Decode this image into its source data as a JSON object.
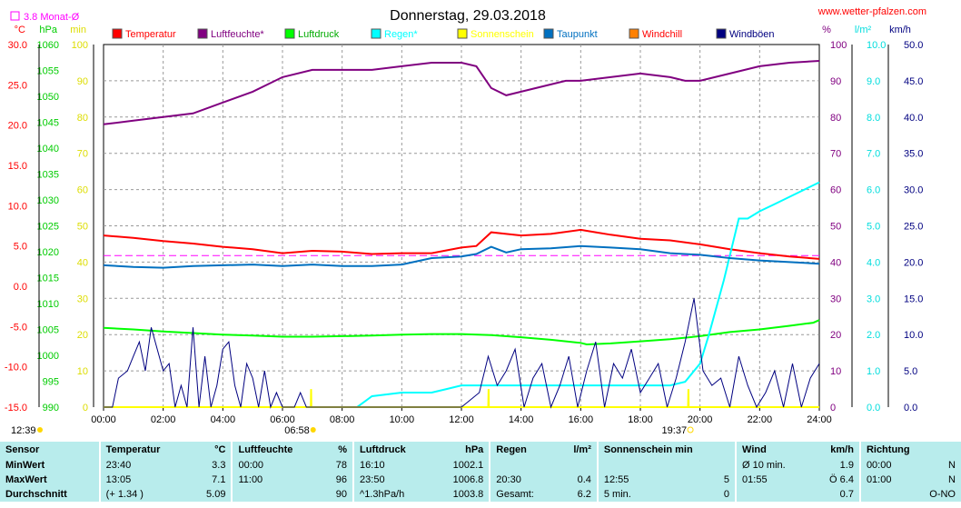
{
  "site": "www.wetter-pfalzen.com",
  "chart_data": {
    "type": "line",
    "title": "Donnerstag, 29.03.2018",
    "month_avg_label": "3.8 Monat-Ø",
    "month_avg_temp": 3.8,
    "x_ticks": [
      "00:00",
      "02:00",
      "04:00",
      "06:00",
      "08:00",
      "10:00",
      "12:00",
      "14:00",
      "16:00",
      "18:00",
      "20:00",
      "22:00",
      "24:00"
    ],
    "xlim": [
      0,
      24
    ],
    "sunrise": "06:58",
    "sunset": "19:37",
    "moon_left": "12:39",
    "grid": true,
    "left_axes": [
      {
        "unit": "°C",
        "color": "#ff0000",
        "ylim": [
          -15,
          30
        ],
        "ticks": [
          "30.0",
          "25.0",
          "20.0",
          "15.0",
          "10.0",
          "5.0",
          "0.0",
          "-5.0",
          "-10.0",
          "-15.0"
        ]
      },
      {
        "unit": "hPa",
        "color": "#00cc00",
        "ylim": [
          990,
          1060
        ],
        "ticks": [
          "1060",
          "1055",
          "1050",
          "1045",
          "1040",
          "1035",
          "1030",
          "1025",
          "1020",
          "1015",
          "1010",
          "1005",
          "1000",
          "995",
          "990"
        ]
      },
      {
        "unit": "min",
        "color": "#dddd00",
        "ylim": [
          0,
          100
        ],
        "ticks": [
          "100",
          "90",
          "80",
          "70",
          "60",
          "50",
          "40",
          "30",
          "20",
          "10",
          "0"
        ]
      }
    ],
    "right_axes": [
      {
        "unit": "%",
        "color": "#800080",
        "ylim": [
          0,
          100
        ],
        "ticks": [
          "100",
          "90",
          "80",
          "70",
          "60",
          "50",
          "40",
          "30",
          "20",
          "10",
          "0"
        ]
      },
      {
        "unit": "l/m²",
        "color": "#00dddd",
        "ylim": [
          0,
          10
        ],
        "ticks": [
          "10.0",
          "9.0",
          "8.0",
          "7.0",
          "6.0",
          "5.0",
          "4.0",
          "3.0",
          "2.0",
          "1.0",
          "0.0"
        ]
      },
      {
        "unit": "km/h",
        "color": "#000080",
        "ylim": [
          0,
          50
        ],
        "ticks": [
          "50.0",
          "45.0",
          "40.0",
          "35.0",
          "30.0",
          "25.0",
          "20.0",
          "15.0",
          "10.0",
          "5.0",
          "0.0"
        ]
      }
    ],
    "legend": [
      {
        "name": "Temperatur",
        "color": "#ff0000"
      },
      {
        "name": "Luftfeuchte*",
        "color": "#800080"
      },
      {
        "name": "Luftdruck",
        "color": "#00ff00"
      },
      {
        "name": "Regen*",
        "color": "#00ffff"
      },
      {
        "name": "Sonnenschein",
        "color": "#ffff00"
      },
      {
        "name": "Taupunkt",
        "color": "#0070c0"
      },
      {
        "name": "Windchill",
        "color": "#ff8000"
      },
      {
        "name": "Windböen",
        "color": "#000080"
      }
    ],
    "series": [
      {
        "name": "Temperatur",
        "color": "#ff0000",
        "axis": "°C",
        "x": [
          0,
          1,
          2,
          3,
          4,
          5,
          6,
          7,
          8,
          9,
          10,
          11,
          12,
          12.5,
          13,
          13.5,
          14,
          15,
          16,
          16.5,
          17,
          18,
          19,
          20,
          21,
          22,
          23,
          24
        ],
        "values": [
          6.3,
          6.0,
          5.6,
          5.3,
          4.9,
          4.6,
          4.1,
          4.4,
          4.3,
          4.0,
          4.1,
          4.1,
          4.8,
          5.0,
          6.7,
          6.5,
          6.3,
          6.5,
          7.0,
          6.7,
          6.4,
          5.9,
          5.7,
          5.2,
          4.6,
          4.1,
          3.7,
          3.4
        ]
      },
      {
        "name": "Luftfeuchte*",
        "color": "#800080",
        "axis": "%",
        "x": [
          0,
          1,
          2,
          3,
          4,
          5,
          6,
          7,
          8,
          9,
          10,
          11,
          11.5,
          12,
          12.5,
          13,
          13.5,
          14,
          15,
          15.5,
          16,
          17,
          18,
          19,
          19.5,
          20,
          21,
          22,
          23,
          24
        ],
        "values": [
          78,
          79,
          80,
          81,
          84,
          87,
          91,
          93,
          93,
          93,
          94,
          95,
          95,
          95,
          94,
          88,
          86,
          87,
          89,
          90,
          90,
          91,
          92,
          91,
          90,
          90,
          92,
          94,
          95,
          95.5
        ]
      },
      {
        "name": "Luftdruck",
        "color": "#00ff00",
        "axis": "hPa",
        "x": [
          0,
          1,
          2,
          3,
          4,
          5,
          6,
          7,
          8,
          9,
          10,
          11,
          12,
          13,
          14,
          15,
          16,
          16.2,
          17,
          18,
          19,
          20,
          21,
          22,
          23,
          23.8,
          24
        ],
        "values": [
          1005.3,
          1005.0,
          1004.6,
          1004.3,
          1004.0,
          1003.8,
          1003.6,
          1003.6,
          1003.7,
          1003.8,
          1004.0,
          1004.1,
          1004.1,
          1003.9,
          1003.5,
          1003.0,
          1002.4,
          1002.1,
          1002.3,
          1002.7,
          1003.1,
          1003.7,
          1004.5,
          1005.0,
          1005.7,
          1006.3,
          1006.8
        ]
      },
      {
        "name": "Regen*",
        "color": "#00ffff",
        "axis": "l/m²",
        "x": [
          0,
          8.5,
          9,
          10,
          11,
          11.5,
          12,
          13,
          14,
          15,
          16,
          17,
          18,
          19,
          19.5,
          20,
          20.3,
          20.8,
          21.3,
          21.6,
          22,
          22.5,
          23,
          23.5,
          24
        ],
        "values": [
          0,
          0,
          0.3,
          0.4,
          0.4,
          0.5,
          0.6,
          0.6,
          0.6,
          0.6,
          0.6,
          0.6,
          0.6,
          0.6,
          0.7,
          1.2,
          2.0,
          3.5,
          5.2,
          5.2,
          5.4,
          5.6,
          5.8,
          6.0,
          6.2
        ]
      },
      {
        "name": "Sonnenschein",
        "color": "#ffff00",
        "axis": "min",
        "x": [
          0,
          6.95,
          6.96,
          6.97,
          12.9,
          12.91,
          12.92,
          19.6,
          19.61,
          19.62,
          24
        ],
        "values": [
          0,
          0,
          5,
          0,
          0,
          5,
          0,
          0,
          5,
          0,
          0
        ]
      },
      {
        "name": "Taupunkt",
        "color": "#0070c0",
        "axis": "°C",
        "x": [
          0,
          1,
          2,
          3,
          4,
          5,
          6,
          7,
          8,
          9,
          10,
          11,
          12,
          12.5,
          13,
          13.5,
          14,
          15,
          16,
          17,
          18,
          19,
          20,
          21,
          22,
          23,
          24
        ],
        "values": [
          2.6,
          2.4,
          2.3,
          2.5,
          2.6,
          2.7,
          2.5,
          2.7,
          2.5,
          2.5,
          2.7,
          3.5,
          3.7,
          4.0,
          4.9,
          4.2,
          4.6,
          4.7,
          5.0,
          4.8,
          4.6,
          4.1,
          3.9,
          3.5,
          3.2,
          3.0,
          2.8
        ]
      },
      {
        "name": "Windböen",
        "color": "#000080",
        "axis": "km/h",
        "x": [
          0,
          0.3,
          0.5,
          0.8,
          1.0,
          1.2,
          1.4,
          1.6,
          1.8,
          2.0,
          2.2,
          2.4,
          2.6,
          2.8,
          3.0,
          3.2,
          3.4,
          3.6,
          3.8,
          4.0,
          4.2,
          4.4,
          4.6,
          4.8,
          5.0,
          5.2,
          5.4,
          5.6,
          5.8,
          6.0,
          6.2,
          6.4,
          6.6,
          6.8,
          7.0,
          7.2,
          7.4,
          7.6,
          12.0,
          12.3,
          12.6,
          12.9,
          13.2,
          13.5,
          13.8,
          14.1,
          14.4,
          14.7,
          15.0,
          15.3,
          15.6,
          15.9,
          16.2,
          16.5,
          16.8,
          17.1,
          17.4,
          17.7,
          18.0,
          18.3,
          18.6,
          18.9,
          19.2,
          19.5,
          19.8,
          20.1,
          20.4,
          20.7,
          21.0,
          21.3,
          21.6,
          21.9,
          22.2,
          22.5,
          22.8,
          23.1,
          23.4,
          23.7,
          24.0
        ],
        "values": [
          0,
          0,
          4,
          5,
          7,
          9,
          5,
          11,
          8,
          5,
          6,
          0,
          3,
          0,
          11,
          0,
          7,
          0,
          3,
          8,
          9,
          3,
          0,
          6,
          4,
          0,
          5,
          0,
          2,
          0,
          0,
          0,
          2,
          0,
          0,
          0,
          0,
          0,
          0,
          1,
          2,
          7,
          3,
          5,
          8,
          0,
          4,
          6,
          0,
          3,
          7,
          0,
          5,
          9,
          0,
          6,
          4,
          8,
          2,
          4,
          6,
          0,
          4,
          9,
          15,
          5,
          3,
          4,
          0,
          7,
          3,
          0,
          2,
          5,
          0,
          6,
          0,
          4,
          6
        ]
      }
    ]
  },
  "stats": {
    "headers": {
      "sensor": "Sensor",
      "temp": "Temperatur",
      "temp_unit": "°C",
      "hum": "Luftfeuchte",
      "hum_unit": "%",
      "press": "Luftdruck",
      "press_unit": "hPa",
      "rain": "Regen",
      "rain_unit": "l/m²",
      "sun": "Sonnenschein min",
      "wind": "Wind",
      "wind_unit": "km/h",
      "dir": "Richtung"
    },
    "rows": [
      {
        "label": "MinWert",
        "temp_time": "23:40",
        "temp_val": "3.3",
        "hum_time": "00:00",
        "hum_val": "78",
        "press_time": "16:10",
        "press_val": "1002.1",
        "rain_time": "",
        "rain_val": "",
        "sun_time": "",
        "sun_val": "",
        "wind_time": "Ø 10 min.",
        "wind_val": "1.9",
        "dir_time": "00:00",
        "dir_val": "N"
      },
      {
        "label": "MaxWert",
        "temp_time": "13:05",
        "temp_val": "7.1",
        "hum_time": "11:00",
        "hum_val": "96",
        "press_time": "23:50",
        "press_val": "1006.8",
        "rain_time": "20:30",
        "rain_val": "0.4",
        "sun_time": "12:55",
        "sun_val": "5",
        "wind_time": "01:55",
        "wind_val": "Ö 6.4",
        "dir_time": "01:00",
        "dir_val": "N"
      },
      {
        "label": "Durchschnitt",
        "temp_time": "(+ 1.34 )",
        "temp_val": "5.09",
        "hum_time": "",
        "hum_val": "90",
        "press_time": "^1.3hPa/h",
        "press_val": "1003.8",
        "rain_time": "Gesamt:",
        "rain_val": "6.2",
        "sun_time": "5 min.",
        "sun_val": "0",
        "wind_time": "",
        "wind_val": "0.7",
        "dir_time": "",
        "dir_val": "O-NO"
      }
    ]
  }
}
